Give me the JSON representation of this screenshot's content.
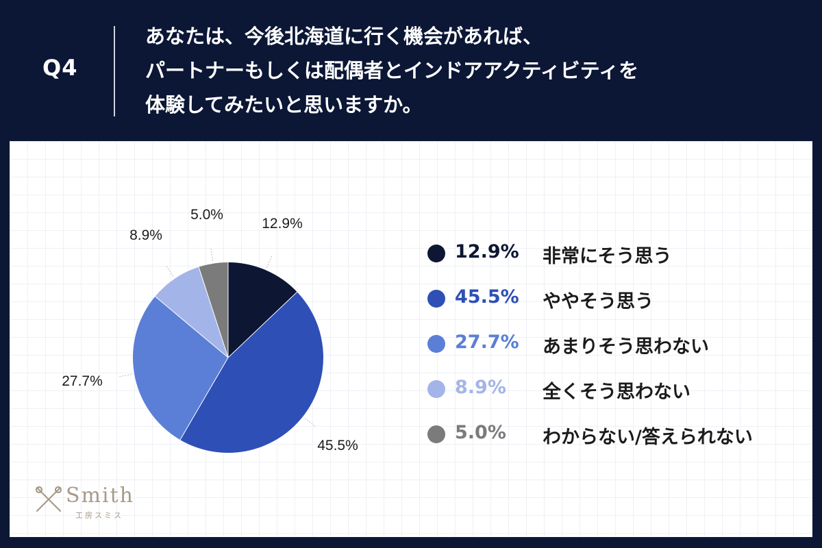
{
  "header": {
    "q_label": "Q4",
    "question_lines": [
      "あなたは、今後北海道に行く機会があれば、",
      "パートナーもしくは配偶者とインドアアクティビティを",
      "体験してみたいと思いますか。"
    ]
  },
  "chart_data": {
    "type": "pie",
    "unit": "%",
    "slices": [
      {
        "label": "非常にそう思う",
        "value": 12.9,
        "display": "12.9%",
        "color": "#0d1633"
      },
      {
        "label": "ややそう思う",
        "value": 45.5,
        "display": "45.5%",
        "color": "#2e4fb5"
      },
      {
        "label": "あまりそう思わない",
        "value": 27.7,
        "display": "27.7%",
        "color": "#5b7fd6"
      },
      {
        "label": "全くそう思わない",
        "value": 8.9,
        "display": "8.9%",
        "color": "#a3b5e8"
      },
      {
        "label": "わからない/答えられない",
        "value": 5.0,
        "display": "5.0%",
        "color": "#7b7b7b"
      }
    ],
    "legend_position": "right"
  },
  "logo": {
    "text": "Smith",
    "subtext": "工房スミス",
    "color": "#a79a8b"
  }
}
